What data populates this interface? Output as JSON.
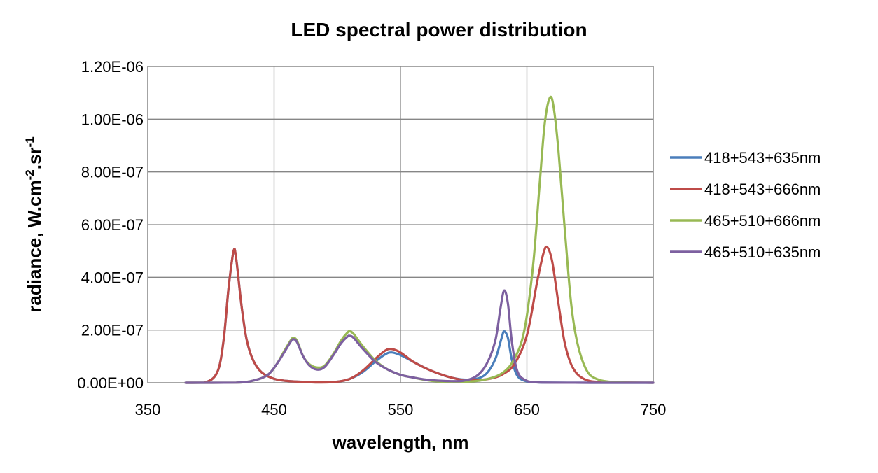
{
  "chart_data": {
    "type": "line",
    "title": "LED spectral power distribution",
    "xlabel": "wavelength, nm",
    "ylabel": {
      "base": "radiance, W.cm",
      "sup1": "-2",
      "mid": ".sr",
      "sup2": "-1"
    },
    "xlim": [
      350,
      750
    ],
    "ylim": [
      0,
      1.2e-06
    ],
    "xticks": [
      350,
      450,
      550,
      650,
      750
    ],
    "xtick_labels": [
      "350",
      "450",
      "550",
      "650",
      "750"
    ],
    "yticks": [
      0,
      2e-07,
      4e-07,
      6e-07,
      8e-07,
      1e-06,
      1.2e-06
    ],
    "ytick_labels": [
      "0.00E+00",
      "2.00E-07",
      "4.00E-07",
      "6.00E-07",
      "8.00E-07",
      "1.00E-06",
      "1.20E-06"
    ],
    "grid": true,
    "legend_position": "right",
    "series": [
      {
        "name": "418+543+635nm",
        "color": "#4a7ebb",
        "points": [
          [
            380,
            0
          ],
          [
            395,
            5e-10
          ],
          [
            405,
            4e-08
          ],
          [
            410,
            1.6e-07
          ],
          [
            414,
            3.6e-07
          ],
          [
            418,
            5e-07
          ],
          [
            420,
            4.7e-07
          ],
          [
            424,
            3e-07
          ],
          [
            428,
            1.7e-07
          ],
          [
            433,
            9e-08
          ],
          [
            440,
            4e-08
          ],
          [
            450,
            1.5e-08
          ],
          [
            460,
            7e-09
          ],
          [
            470,
            4e-09
          ],
          [
            485,
            2e-09
          ],
          [
            500,
            4e-09
          ],
          [
            510,
            1.5e-08
          ],
          [
            520,
            4e-08
          ],
          [
            530,
            8e-08
          ],
          [
            538,
            1.08e-07
          ],
          [
            543,
            1.15e-07
          ],
          [
            550,
            1.05e-07
          ],
          [
            560,
            8e-08
          ],
          [
            570,
            5.5e-08
          ],
          [
            580,
            3.5e-08
          ],
          [
            590,
            2e-08
          ],
          [
            600,
            1.2e-08
          ],
          [
            610,
            1.5e-08
          ],
          [
            618,
            3.5e-08
          ],
          [
            625,
            9e-08
          ],
          [
            630,
            1.7e-07
          ],
          [
            632,
            1.95e-07
          ],
          [
            635,
            1.7e-07
          ],
          [
            638,
            9e-08
          ],
          [
            642,
            3e-08
          ],
          [
            648,
            8e-09
          ],
          [
            660,
            1e-09
          ],
          [
            700,
            0
          ],
          [
            750,
            0
          ]
        ]
      },
      {
        "name": "418+543+666nm",
        "color": "#be4b48",
        "points": [
          [
            380,
            0
          ],
          [
            395,
            5e-10
          ],
          [
            405,
            4e-08
          ],
          [
            410,
            1.6e-07
          ],
          [
            414,
            3.6e-07
          ],
          [
            418,
            5e-07
          ],
          [
            420,
            4.7e-07
          ],
          [
            424,
            3e-07
          ],
          [
            428,
            1.7e-07
          ],
          [
            433,
            9e-08
          ],
          [
            440,
            4e-08
          ],
          [
            450,
            1.5e-08
          ],
          [
            460,
            7e-09
          ],
          [
            470,
            4e-09
          ],
          [
            485,
            1e-09
          ],
          [
            500,
            4e-09
          ],
          [
            510,
            1.5e-08
          ],
          [
            520,
            4.5e-08
          ],
          [
            530,
            9e-08
          ],
          [
            538,
            1.22e-07
          ],
          [
            543,
            1.28e-07
          ],
          [
            550,
            1.15e-07
          ],
          [
            560,
            8e-08
          ],
          [
            570,
            5.5e-08
          ],
          [
            580,
            3.5e-08
          ],
          [
            590,
            2e-08
          ],
          [
            600,
            1e-08
          ],
          [
            610,
            1e-08
          ],
          [
            620,
            1.5e-08
          ],
          [
            630,
            3e-08
          ],
          [
            640,
            7e-08
          ],
          [
            650,
            1.8e-07
          ],
          [
            658,
            3.8e-07
          ],
          [
            663,
            4.9e-07
          ],
          [
            666,
            5.15e-07
          ],
          [
            670,
            4.6e-07
          ],
          [
            675,
            3e-07
          ],
          [
            680,
            1.5e-07
          ],
          [
            686,
            6e-08
          ],
          [
            695,
            1.5e-08
          ],
          [
            710,
            2e-09
          ],
          [
            750,
            0
          ]
        ]
      },
      {
        "name": "465+510+666nm",
        "color": "#98b954",
        "points": [
          [
            380,
            0
          ],
          [
            420,
            5e-10
          ],
          [
            435,
            1e-08
          ],
          [
            445,
            3e-08
          ],
          [
            452,
            7e-08
          ],
          [
            458,
            1.2e-07
          ],
          [
            463,
            1.6e-07
          ],
          [
            465,
            1.7e-07
          ],
          [
            468,
            1.6e-07
          ],
          [
            473,
            1e-07
          ],
          [
            478,
            7e-08
          ],
          [
            484,
            5.8e-08
          ],
          [
            490,
            6.5e-08
          ],
          [
            497,
            1.1e-07
          ],
          [
            503,
            1.6e-07
          ],
          [
            508,
            1.9e-07
          ],
          [
            510,
            1.95e-07
          ],
          [
            513,
            1.85e-07
          ],
          [
            520,
            1.4e-07
          ],
          [
            530,
            8.5e-08
          ],
          [
            540,
            5e-08
          ],
          [
            550,
            3e-08
          ],
          [
            560,
            2e-08
          ],
          [
            570,
            1e-08
          ],
          [
            580,
            5e-09
          ],
          [
            600,
            4e-09
          ],
          [
            615,
            1e-08
          ],
          [
            630,
            3.5e-08
          ],
          [
            640,
            9e-08
          ],
          [
            648,
            2e-07
          ],
          [
            655,
            4.5e-07
          ],
          [
            660,
            7.5e-07
          ],
          [
            664,
            9.8e-07
          ],
          [
            668,
            1.08e-06
          ],
          [
            671,
            1.05e-06
          ],
          [
            675,
            8.8e-07
          ],
          [
            680,
            5.8e-07
          ],
          [
            685,
            3e-07
          ],
          [
            690,
            1.5e-07
          ],
          [
            697,
            5e-08
          ],
          [
            705,
            1.5e-08
          ],
          [
            720,
            2e-09
          ],
          [
            750,
            0
          ]
        ]
      },
      {
        "name": "465+510+635nm",
        "color": "#7d60a0",
        "points": [
          [
            380,
            0
          ],
          [
            420,
            5e-10
          ],
          [
            435,
            1e-08
          ],
          [
            445,
            3e-08
          ],
          [
            452,
            7e-08
          ],
          [
            458,
            1.15e-07
          ],
          [
            463,
            1.55e-07
          ],
          [
            465,
            1.65e-07
          ],
          [
            468,
            1.55e-07
          ],
          [
            473,
            1e-07
          ],
          [
            478,
            6.5e-08
          ],
          [
            484,
            5e-08
          ],
          [
            490,
            6e-08
          ],
          [
            497,
            1.05e-07
          ],
          [
            503,
            1.5e-07
          ],
          [
            508,
            1.75e-07
          ],
          [
            510,
            1.78e-07
          ],
          [
            513,
            1.7e-07
          ],
          [
            520,
            1.3e-07
          ],
          [
            530,
            8e-08
          ],
          [
            540,
            5e-08
          ],
          [
            550,
            3e-08
          ],
          [
            560,
            2e-08
          ],
          [
            570,
            1.2e-08
          ],
          [
            580,
            8e-09
          ],
          [
            590,
            6e-09
          ],
          [
            600,
            8e-09
          ],
          [
            610,
            2.5e-08
          ],
          [
            618,
            7e-08
          ],
          [
            625,
            1.6e-07
          ],
          [
            629,
            2.8e-07
          ],
          [
            632,
            3.5e-07
          ],
          [
            635,
            3e-07
          ],
          [
            638,
            1.6e-07
          ],
          [
            642,
            5e-08
          ],
          [
            648,
            1.2e-08
          ],
          [
            660,
            1e-09
          ],
          [
            700,
            0
          ],
          [
            750,
            0
          ]
        ]
      }
    ]
  }
}
